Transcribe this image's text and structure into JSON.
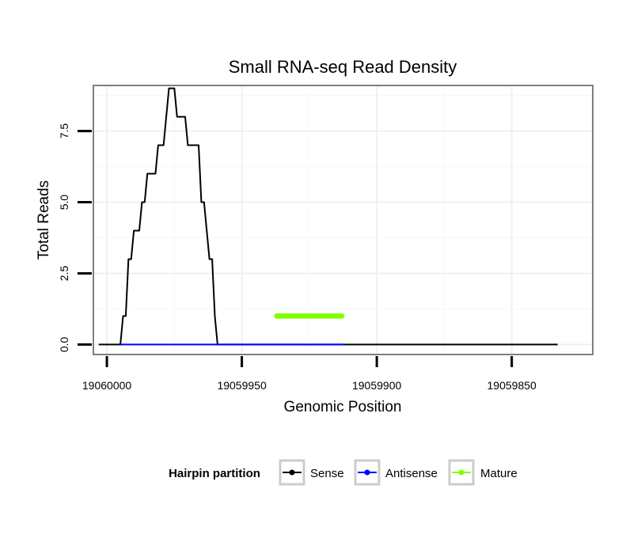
{
  "chart_data": {
    "type": "line",
    "title": "Small RNA-seq Read Density",
    "xlabel": "Genomic Position",
    "ylabel": "Total Reads",
    "x_reversed": true,
    "xlim": [
      19060005,
      19059820
    ],
    "ylim": [
      -0.35,
      9.1
    ],
    "x_ticks": [
      19060000,
      19059950,
      19059900,
      19059850
    ],
    "x_tick_labels": [
      "19060000",
      "19059950",
      "19059900",
      "19059850"
    ],
    "y_ticks": [
      0.0,
      2.5,
      5.0,
      7.5
    ],
    "y_tick_labels": [
      "0.0",
      "2.5",
      "5.0",
      "7.5"
    ],
    "grid": true,
    "legend": {
      "title": "Hairpin partition",
      "position": "bottom",
      "entries": [
        "Sense",
        "Antisense",
        "Mature"
      ]
    },
    "series": [
      {
        "name": "Sense",
        "color": "#000000",
        "x": [
          19060003,
          19059995,
          19059994,
          19059993,
          19059992,
          19059991,
          19059990,
          19059989,
          19059988,
          19059987,
          19059986,
          19059985,
          19059984,
          19059983,
          19059982,
          19059981,
          19059980,
          19059979,
          19059978,
          19059977,
          19059976,
          19059975,
          19059974,
          19059973,
          19059972,
          19059971,
          19059970,
          19059969,
          19059968,
          19059967,
          19059966,
          19059965,
          19059964,
          19059963,
          19059962,
          19059961,
          19059960,
          19059959,
          19059958,
          19059957,
          19059956,
          19059955,
          19059954,
          19059953,
          19059952,
          19059951,
          19059950,
          19059949,
          19059948,
          19059947,
          19059946,
          19059945,
          19059944,
          19059943,
          19059942,
          19059941,
          19059940,
          19059939,
          19059938,
          19059937,
          19059936,
          19059935,
          19059934,
          19059933,
          19059932,
          19059931,
          19059930,
          19059929,
          19059928,
          19059927,
          19059926,
          19059925,
          19059924,
          19059923,
          19059922,
          19059921,
          19059920,
          19059919,
          19059918,
          19059917,
          19059916,
          19059915,
          19059914,
          19059913,
          19059912,
          19059911,
          19059910,
          19059909,
          19059908,
          19059907,
          19059906,
          19059905,
          19059904,
          19059903,
          19059902,
          19059901,
          19059900,
          19059833
        ],
        "y": [
          0,
          0,
          1,
          1,
          3,
          3,
          4,
          4,
          4,
          5,
          5,
          6,
          6,
          6,
          6,
          7,
          7,
          7,
          8,
          9,
          9,
          9,
          8,
          8,
          8,
          8,
          7,
          7,
          7,
          7,
          7,
          5,
          5,
          4,
          3,
          3,
          1,
          0,
          0,
          0,
          0,
          0,
          0,
          0,
          0,
          0,
          0,
          0,
          0,
          0,
          0,
          0,
          0,
          0,
          0,
          0,
          0,
          0,
          0,
          0,
          0,
          0,
          0,
          0,
          0,
          0,
          0,
          0,
          0,
          0,
          0,
          0,
          0,
          0,
          0,
          0,
          0,
          0,
          0,
          0,
          0,
          0,
          0,
          0,
          0,
          0,
          0,
          0,
          0,
          0,
          0,
          0,
          0,
          0,
          0,
          0,
          0,
          0
        ]
      },
      {
        "name": "Antisense",
        "color": "#0000ff",
        "x": [
          19059995,
          19059937,
          19059936,
          19059912
        ],
        "y": [
          0,
          0,
          0,
          0
        ]
      },
      {
        "name": "Mature",
        "color": "#80ff00",
        "x": [
          19059937,
          19059936,
          19059935,
          19059934,
          19059933,
          19059932,
          19059931,
          19059930,
          19059929,
          19059928,
          19059927,
          19059926,
          19059925,
          19059924,
          19059923,
          19059922,
          19059921,
          19059920,
          19059919,
          19059918,
          19059917,
          19059916,
          19059915,
          19059914,
          19059913
        ],
        "y": [
          1,
          1,
          1,
          1,
          1,
          1,
          1,
          1,
          1,
          1,
          1,
          1,
          1,
          1,
          1,
          1,
          1,
          1,
          1,
          1,
          1,
          1,
          1,
          1,
          1
        ]
      }
    ]
  }
}
